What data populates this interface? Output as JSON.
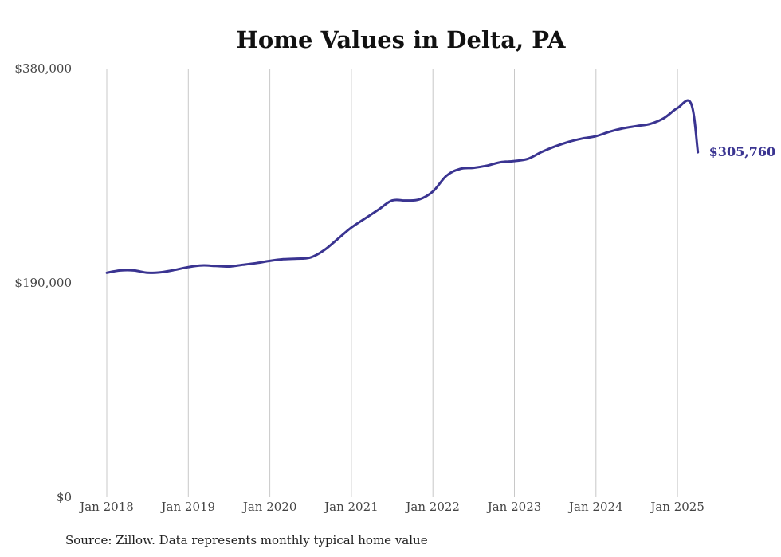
{
  "chart_data": {
    "type": "line",
    "title": "Home Values in Delta, PA",
    "xlabel": "",
    "ylabel": "",
    "source": "Source: Zillow. Data represents monthly typical home value",
    "y_ticks": [
      "$0",
      "$190,000",
      "$380,000"
    ],
    "ylim": [
      0,
      380000
    ],
    "x_ticks": [
      "Jan 2018",
      "Jan 2019",
      "Jan 2020",
      "Jan 2021",
      "Jan 2022",
      "Jan 2023",
      "Jan 2024",
      "Jan 2025"
    ],
    "xlim": [
      "2018-01",
      "2025-04"
    ],
    "grid": "vertical",
    "end_label": "$305,760",
    "line_color": "#3a3491",
    "series": [
      {
        "x": [
          "2018-01",
          "2018-03",
          "2018-05",
          "2018-07",
          "2018-09",
          "2018-11",
          "2019-01",
          "2019-03",
          "2019-05",
          "2019-07",
          "2019-09",
          "2019-11",
          "2020-01",
          "2020-03",
          "2020-05",
          "2020-07",
          "2020-09",
          "2020-11",
          "2021-01",
          "2021-03",
          "2021-05",
          "2021-07",
          "2021-09",
          "2021-11",
          "2022-01",
          "2022-03",
          "2022-05",
          "2022-07",
          "2022-09",
          "2022-11",
          "2023-01",
          "2023-03",
          "2023-05",
          "2023-07",
          "2023-09",
          "2023-11",
          "2024-01",
          "2024-03",
          "2024-05",
          "2024-07",
          "2024-09",
          "2024-11",
          "2025-01",
          "2025-03",
          "2025-04"
        ],
        "values": [
          199000,
          201000,
          201000,
          199000,
          199500,
          201500,
          204000,
          205500,
          205000,
          204500,
          206000,
          207500,
          209500,
          211000,
          211500,
          212500,
          219000,
          229000,
          239000,
          247000,
          255000,
          263000,
          263000,
          264000,
          271000,
          285000,
          291000,
          292000,
          294000,
          297000,
          298000,
          300000,
          306000,
          311000,
          315000,
          318000,
          320000,
          324000,
          327000,
          329000,
          331000,
          336000,
          345000,
          349000,
          305760
        ]
      }
    ]
  }
}
